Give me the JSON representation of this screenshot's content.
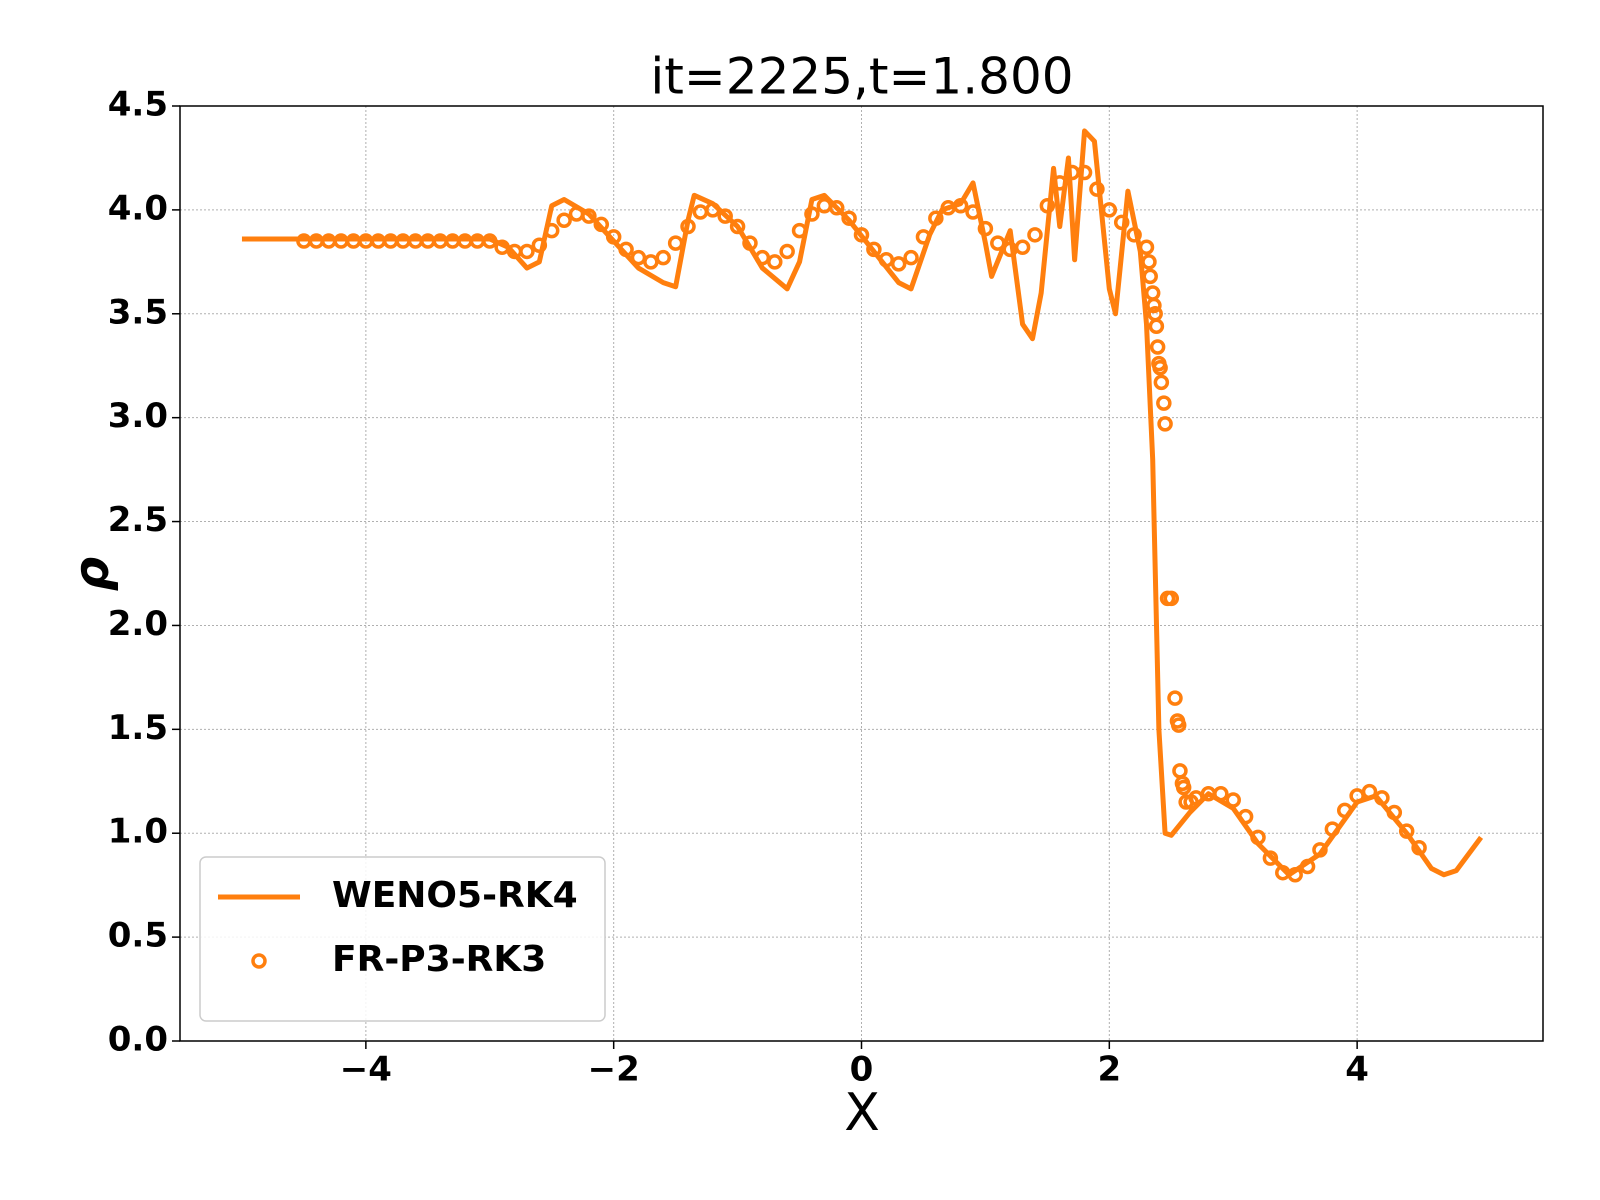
{
  "chart_data": {
    "type": "line",
    "title": "it=2225,t=1.800",
    "xlabel": "X",
    "ylabel": "ρ",
    "xlim": [
      -5.5,
      5.5
    ],
    "ylim": [
      0,
      4.5
    ],
    "xticks": [
      {
        "value": -4,
        "label": "−4"
      },
      {
        "value": -2,
        "label": "−2"
      },
      0,
      2,
      4
    ],
    "yticks": [
      {
        "value": 0,
        "label": "0.0"
      },
      {
        "value": 0.5,
        "label": "0.5"
      },
      {
        "value": 1,
        "label": "1.0"
      },
      {
        "value": 1.5,
        "label": "1.5"
      },
      {
        "value": 2,
        "label": "2.0"
      },
      {
        "value": 2.5,
        "label": "2.5"
      },
      {
        "value": 3,
        "label": "3.0"
      },
      {
        "value": 3.5,
        "label": "3.5"
      },
      {
        "value": 4,
        "label": "4.0"
      },
      {
        "value": 4.5,
        "label": "4.5"
      }
    ],
    "grid": true,
    "legend": "lower left",
    "series": [
      {
        "name": "WENO5-RK4",
        "type": "line",
        "color": "#ff7f0e",
        "x": [
          -5,
          -3.0,
          -2.85,
          -2.7,
          -2.6,
          -2.5,
          -2.4,
          -2.2,
          -2.0,
          -1.8,
          -1.6,
          -1.5,
          -1.4,
          -1.35,
          -1.2,
          -1.0,
          -0.8,
          -0.6,
          -0.5,
          -0.4,
          -0.3,
          -0.1,
          0.1,
          0.3,
          0.4,
          0.55,
          0.65,
          0.8,
          0.9,
          1.0,
          1.05,
          1.2,
          1.3,
          1.38,
          1.45,
          1.55,
          1.6,
          1.67,
          1.72,
          1.8,
          1.88,
          2.0,
          2.05,
          2.15,
          2.25,
          2.3,
          2.35,
          2.4,
          2.45,
          2.5,
          2.65,
          2.8,
          3.0,
          3.2,
          3.45,
          3.7,
          4.0,
          4.15,
          4.4,
          4.6,
          4.7,
          4.8,
          5.0
        ],
        "values": [
          3.86,
          3.86,
          3.82,
          3.72,
          3.75,
          4.02,
          4.05,
          3.98,
          3.85,
          3.72,
          3.65,
          3.63,
          3.95,
          4.07,
          4.03,
          3.92,
          3.72,
          3.62,
          3.75,
          4.05,
          4.07,
          3.95,
          3.8,
          3.65,
          3.62,
          3.88,
          4.0,
          4.03,
          4.13,
          3.84,
          3.68,
          3.9,
          3.45,
          3.38,
          3.6,
          4.2,
          3.92,
          4.25,
          3.76,
          4.38,
          4.33,
          3.62,
          3.5,
          4.09,
          3.8,
          3.45,
          2.8,
          1.5,
          1.0,
          0.99,
          1.1,
          1.19,
          1.12,
          0.95,
          0.8,
          0.9,
          1.15,
          1.18,
          1.0,
          0.83,
          0.8,
          0.82,
          0.98
        ]
      },
      {
        "name": "FR-P3-RK3",
        "type": "scatter",
        "color": "#ff7f0e",
        "x": [
          -4.5,
          -4.4,
          -4.3,
          -4.2,
          -4.1,
          -4.0,
          -3.9,
          -3.8,
          -3.7,
          -3.6,
          -3.5,
          -3.4,
          -3.3,
          -3.2,
          -3.1,
          -3.0,
          -2.9,
          -2.8,
          -2.7,
          -2.6,
          -2.5,
          -2.4,
          -2.3,
          -2.2,
          -2.1,
          -2.0,
          -1.9,
          -1.8,
          -1.7,
          -1.6,
          -1.5,
          -1.4,
          -1.3,
          -1.2,
          -1.1,
          -1.0,
          -0.9,
          -0.8,
          -0.7,
          -0.6,
          -0.5,
          -0.4,
          -0.3,
          -0.2,
          -0.1,
          0.0,
          0.1,
          0.2,
          0.3,
          0.4,
          0.5,
          0.6,
          0.7,
          0.8,
          0.9,
          1.0,
          1.1,
          1.2,
          1.3,
          1.4,
          1.5,
          1.6,
          1.7,
          1.8,
          1.9,
          2.0,
          2.1,
          2.2,
          2.3,
          2.32,
          2.33,
          2.35,
          2.36,
          2.37,
          2.38,
          2.39,
          2.4,
          2.41,
          2.42,
          2.44,
          2.45,
          2.47,
          2.5,
          2.53,
          2.55,
          2.56,
          2.57,
          2.59,
          2.6,
          2.62,
          2.66,
          2.7,
          2.8,
          2.9,
          3.0,
          3.1,
          3.2,
          3.3,
          3.4,
          3.5,
          3.6,
          3.7,
          3.8,
          3.9,
          4.0,
          4.1,
          4.2,
          4.3,
          4.4,
          4.5
        ],
        "values": [
          3.85,
          3.85,
          3.85,
          3.85,
          3.85,
          3.85,
          3.85,
          3.85,
          3.85,
          3.85,
          3.85,
          3.85,
          3.85,
          3.85,
          3.85,
          3.85,
          3.82,
          3.8,
          3.8,
          3.83,
          3.9,
          3.95,
          3.98,
          3.97,
          3.93,
          3.87,
          3.81,
          3.77,
          3.75,
          3.77,
          3.84,
          3.92,
          3.99,
          4.0,
          3.97,
          3.92,
          3.84,
          3.77,
          3.75,
          3.8,
          3.9,
          3.98,
          4.02,
          4.01,
          3.96,
          3.88,
          3.81,
          3.76,
          3.74,
          3.77,
          3.87,
          3.96,
          4.01,
          4.02,
          3.99,
          3.91,
          3.84,
          3.81,
          3.82,
          3.88,
          4.02,
          4.13,
          4.18,
          4.18,
          4.1,
          4.0,
          3.94,
          3.88,
          3.82,
          3.75,
          3.68,
          3.6,
          3.54,
          3.5,
          3.44,
          3.34,
          3.26,
          3.24,
          3.17,
          3.07,
          2.97,
          2.13,
          2.13,
          1.65,
          1.54,
          1.52,
          1.3,
          1.24,
          1.22,
          1.15,
          1.15,
          1.17,
          1.19,
          1.19,
          1.16,
          1.08,
          0.98,
          0.88,
          0.81,
          0.8,
          0.84,
          0.92,
          1.02,
          1.11,
          1.18,
          1.2,
          1.17,
          1.1,
          1.01,
          0.93
        ]
      }
    ]
  }
}
